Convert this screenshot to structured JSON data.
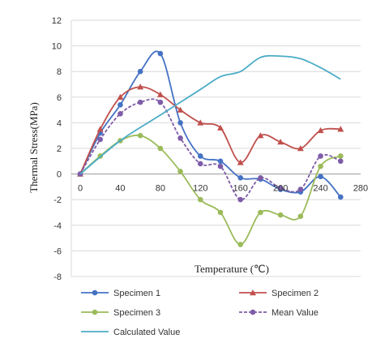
{
  "chart_data": {
    "type": "line",
    "xlabel": "Temperature (℃)",
    "ylabel": "Thermal Stress(MPa)",
    "xlim": [
      -20,
      300
    ],
    "ylim": [
      -8,
      12
    ],
    "x_ticks": [
      "0",
      "40",
      "80",
      "120",
      "160",
      "200",
      "240",
      "280"
    ],
    "y_ticks": [
      "-8",
      "-6",
      "-4",
      "-2",
      "0",
      "2",
      "4",
      "6",
      "8",
      "10",
      "12"
    ],
    "grid": "horizontal",
    "legend_position": "bottom",
    "x": [
      0,
      20,
      40,
      60,
      80,
      100,
      120,
      140,
      160,
      180,
      200,
      220,
      240,
      260
    ],
    "series": [
      {
        "name": "Specimen 1",
        "color": "#4472c4",
        "marker": "circle",
        "dash": false,
        "values": [
          0,
          3.2,
          5.4,
          8.0,
          9.4,
          4.0,
          1.4,
          1.0,
          -0.3,
          -0.4,
          -1.2,
          -1.4,
          -0.2,
          -1.8
        ]
      },
      {
        "name": "Specimen 2",
        "color": "#c0504d",
        "marker": "triangle",
        "dash": false,
        "values": [
          0,
          3.5,
          6.0,
          6.8,
          6.2,
          5.0,
          4.0,
          3.6,
          0.9,
          3.0,
          2.5,
          2.0,
          3.4,
          3.5
        ]
      },
      {
        "name": "Specimen 3",
        "color": "#9bbb59",
        "marker": "circle",
        "dash": false,
        "values": [
          0,
          1.4,
          2.6,
          3.0,
          2.0,
          0.2,
          -2.0,
          -3.0,
          -5.5,
          -3.0,
          -3.2,
          -3.3,
          0.6,
          1.4
        ]
      },
      {
        "name": "Mean Value",
        "color": "#7e5ca8",
        "marker": "circle",
        "dash": true,
        "values": [
          0,
          2.7,
          4.7,
          5.6,
          5.6,
          2.8,
          0.8,
          0.6,
          -2.0,
          -0.3,
          -1.1,
          -1.2,
          1.4,
          1.0
        ]
      },
      {
        "name": "Calculated Value",
        "color": "#4bacc6",
        "marker": "none",
        "dash": false,
        "x": [
          0,
          40,
          80,
          120,
          140,
          160,
          180,
          200,
          220,
          240,
          260
        ],
        "values": [
          0,
          2.6,
          4.6,
          6.6,
          7.6,
          8.0,
          9.1,
          9.2,
          9.0,
          8.3,
          7.4
        ]
      }
    ]
  }
}
